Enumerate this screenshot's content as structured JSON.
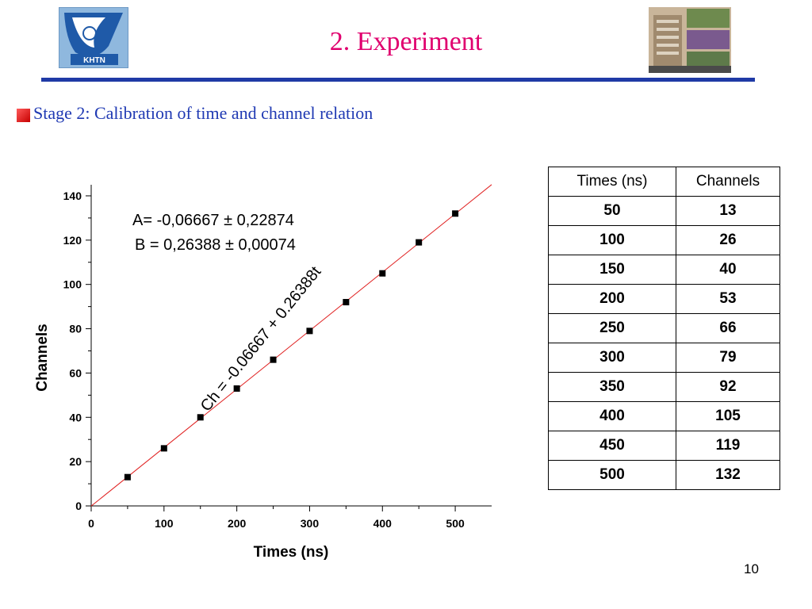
{
  "slide": {
    "title": "2. Experiment",
    "bullet": "Stage 2: Calibration of time and channel relation",
    "page_number": "10"
  },
  "logos": {
    "left_icon": "khtn-university-logo",
    "left_text": "KHTN",
    "right_icon": "campus-photo-collage"
  },
  "colors": {
    "title": "#e0006e",
    "bullet_text": "#1f39b3",
    "rule": "#1f3aa6",
    "fit_line": "#e02020",
    "marker": "#000000"
  },
  "chart_data": {
    "type": "scatter",
    "xlabel": "Times (ns)",
    "ylabel": "Channels",
    "xlim": [
      0,
      550
    ],
    "ylim": [
      0,
      145
    ],
    "x_ticks": [
      0,
      100,
      200,
      300,
      400,
      500
    ],
    "y_ticks": [
      0,
      20,
      40,
      60,
      80,
      100,
      120,
      140
    ],
    "series": [
      {
        "x": [
          50,
          100,
          150,
          200,
          250,
          300,
          350,
          400,
          450,
          500
        ],
        "y": [
          13,
          26,
          40,
          53,
          66,
          79,
          92,
          105,
          119,
          132
        ]
      }
    ],
    "fit": {
      "intercept": -0.06667,
      "slope": 0.26388,
      "x_range": [
        0,
        550
      ]
    },
    "annotations": {
      "param_a": "A= -0,06667 ±  0,22874",
      "param_b": "B = 0,26388 ± 0,00074",
      "equation": "Ch = -0.06667 + 0.26388t"
    },
    "grid": false
  },
  "table": {
    "headers": [
      "Times (ns)",
      "Channels"
    ],
    "rows": [
      [
        "50",
        "13"
      ],
      [
        "100",
        "26"
      ],
      [
        "150",
        "40"
      ],
      [
        "200",
        "53"
      ],
      [
        "250",
        "66"
      ],
      [
        "300",
        "79"
      ],
      [
        "350",
        "92"
      ],
      [
        "400",
        "105"
      ],
      [
        "450",
        "119"
      ],
      [
        "500",
        "132"
      ]
    ]
  }
}
